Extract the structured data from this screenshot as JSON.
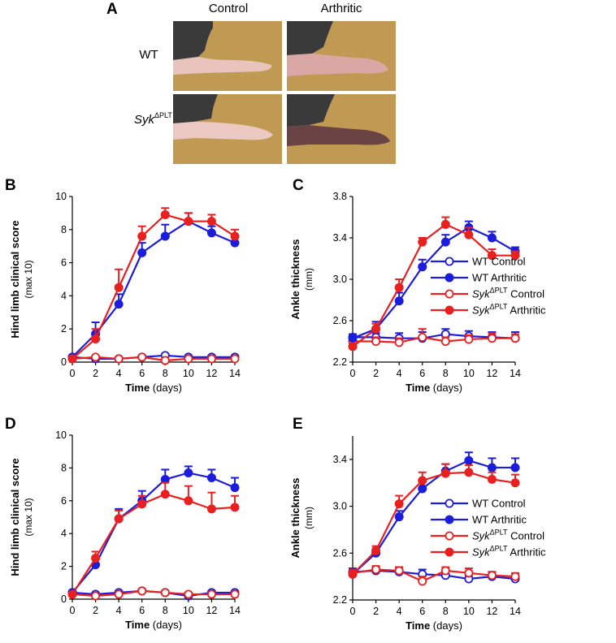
{
  "figure": {
    "panelA": {
      "letter": "A",
      "columns": [
        "Control",
        "Arthritic"
      ],
      "rows": [
        {
          "label": "WT"
        },
        {
          "label_main": "Syk",
          "label_sup": "ΔPLT"
        }
      ]
    },
    "colors": {
      "wt": "#1c1cdc",
      "syk": "#e82020",
      "photo_bg": "#c09a52",
      "paw": "#e8c4bc"
    }
  },
  "chart_data": [
    {
      "id": "B",
      "type": "line",
      "ylabel_bold": "Hind limb clinical score",
      "ylabel_sub": "(max 10)",
      "xlabel_bold": "Time",
      "xlabel_rest": " (days)",
      "x": [
        0,
        2,
        4,
        6,
        8,
        10,
        12,
        14
      ],
      "xlim": [
        0,
        14
      ],
      "ylim": [
        0,
        10
      ],
      "yticks": [
        0,
        2,
        4,
        6,
        8,
        10
      ],
      "ytick_labels": [
        "0",
        "2",
        "4",
        "6",
        "8",
        "10"
      ],
      "series": [
        {
          "name": "WT Control",
          "color": "wt",
          "filled": false,
          "values": [
            0.3,
            0.2,
            0.2,
            0.3,
            0.4,
            0.3,
            0.3,
            0.3
          ],
          "err": [
            0.1,
            0.1,
            0.1,
            0.1,
            0.1,
            0.1,
            0.1,
            0.1
          ]
        },
        {
          "name": "WT Arthritic",
          "color": "wt",
          "filled": true,
          "values": [
            0.3,
            1.7,
            3.5,
            6.6,
            7.6,
            8.5,
            7.8,
            7.2
          ],
          "err": [
            0.1,
            0.7,
            0.6,
            0.6,
            0.7,
            0.5,
            0.4,
            0.3
          ]
        },
        {
          "name": "SykΔPLT Control",
          "color": "syk",
          "filled": false,
          "values": [
            0.2,
            0.3,
            0.2,
            0.3,
            0.1,
            0.2,
            0.2,
            0.2
          ],
          "err": [
            0.1,
            0.1,
            0.1,
            0.1,
            0.2,
            0.1,
            0.1,
            0.1
          ]
        },
        {
          "name": "SykΔPLT Arthritic",
          "color": "syk",
          "filled": true,
          "values": [
            0.2,
            1.4,
            4.5,
            7.6,
            8.9,
            8.5,
            8.5,
            7.6
          ],
          "err": [
            0.1,
            0.6,
            1.1,
            0.6,
            0.4,
            0.5,
            0.4,
            0.4
          ]
        }
      ]
    },
    {
      "id": "C",
      "type": "line",
      "ylabel_bold": "Ankle thickness",
      "ylabel_sub": "(mm)",
      "xlabel_bold": "Time",
      "xlabel_rest": " (days)",
      "x": [
        0,
        2,
        4,
        6,
        8,
        10,
        12,
        14
      ],
      "xlim": [
        0,
        14
      ],
      "ylim": [
        2.2,
        3.8
      ],
      "yticks": [
        2.2,
        2.6,
        3.0,
        3.4,
        3.8
      ],
      "ytick_labels": [
        "2.2",
        "2.6",
        "3.0",
        "3.4",
        "3.8"
      ],
      "legend": [
        {
          "main": "WT",
          "sup": "",
          "rest": " Control",
          "italic": false,
          "series": 0
        },
        {
          "main": "WT",
          "sup": "",
          "rest": " Arthritic",
          "italic": false,
          "series": 1
        },
        {
          "main": "Syk",
          "sup": "ΔPLT",
          "rest": " Control",
          "italic": true,
          "series": 2
        },
        {
          "main": "Syk",
          "sup": "ΔPLT",
          "rest": " Arthritic",
          "italic": true,
          "series": 3
        }
      ],
      "series": [
        {
          "name": "WT Control",
          "color": "wt",
          "filled": false,
          "values": [
            2.44,
            2.44,
            2.43,
            2.43,
            2.47,
            2.45,
            2.44,
            2.43
          ],
          "err": [
            0.03,
            0.04,
            0.05,
            0.06,
            0.05,
            0.05,
            0.05,
            0.06
          ]
        },
        {
          "name": "WT Arthritic",
          "color": "wt",
          "filled": true,
          "values": [
            2.43,
            2.52,
            2.79,
            3.12,
            3.36,
            3.5,
            3.4,
            3.27
          ],
          "err": [
            0.02,
            0.07,
            0.08,
            0.07,
            0.07,
            0.06,
            0.06,
            0.04
          ]
        },
        {
          "name": "SykΔPLT Control",
          "color": "syk",
          "filled": false,
          "values": [
            2.4,
            2.4,
            2.39,
            2.44,
            2.4,
            2.42,
            2.43,
            2.43
          ],
          "err": [
            0.03,
            0.04,
            0.04,
            0.08,
            0.04,
            0.04,
            0.05,
            0.04
          ]
        },
        {
          "name": "SykΔPLT Arthritic",
          "color": "syk",
          "filled": true,
          "values": [
            2.35,
            2.52,
            2.92,
            3.36,
            3.53,
            3.43,
            3.23,
            3.23
          ],
          "err": [
            0.03,
            0.05,
            0.08,
            0.04,
            0.07,
            0.07,
            0.06,
            0.04
          ]
        }
      ]
    },
    {
      "id": "D",
      "type": "line",
      "ylabel_bold": "Hind limb clinical score",
      "ylabel_sub": "(max 10)",
      "xlabel_bold": "Time",
      "xlabel_rest": " (days)",
      "x": [
        0,
        2,
        4,
        6,
        8,
        10,
        12,
        14
      ],
      "xlim": [
        0,
        14
      ],
      "ylim": [
        0,
        10
      ],
      "yticks": [
        0,
        2,
        4,
        6,
        8,
        10
      ],
      "ytick_labels": [
        "0",
        "2",
        "4",
        "6",
        "8",
        "10"
      ],
      "series": [
        {
          "name": "WT Control",
          "color": "wt",
          "filled": false,
          "values": [
            0.4,
            0.3,
            0.4,
            0.5,
            0.4,
            0.2,
            0.4,
            0.4
          ],
          "err": [
            0.1,
            0.1,
            0.1,
            0.1,
            0.1,
            0.2,
            0.1,
            0.1
          ]
        },
        {
          "name": "WT Arthritic",
          "color": "wt",
          "filled": true,
          "values": [
            0.4,
            2.1,
            4.9,
            6.0,
            7.3,
            7.7,
            7.4,
            6.8
          ],
          "err": [
            0.1,
            0.5,
            0.6,
            0.6,
            0.6,
            0.4,
            0.5,
            0.6
          ]
        },
        {
          "name": "SykΔPLT Control",
          "color": "syk",
          "filled": false,
          "values": [
            0.3,
            0.2,
            0.3,
            0.5,
            0.4,
            0.3,
            0.3,
            0.3
          ],
          "err": [
            0.1,
            0.1,
            0.1,
            0.1,
            0.1,
            0.1,
            0.1,
            0.1
          ]
        },
        {
          "name": "SykΔPLT Arthritic",
          "color": "syk",
          "filled": true,
          "values": [
            0.3,
            2.5,
            4.9,
            5.8,
            6.4,
            6.0,
            5.5,
            5.6
          ],
          "err": [
            0.1,
            0.4,
            0.5,
            0.5,
            0.7,
            0.9,
            1.0,
            0.7
          ]
        }
      ]
    },
    {
      "id": "E",
      "type": "line",
      "ylabel_bold": "Ankle thickness",
      "ylabel_sub": "(mm)",
      "xlabel_bold": "Time",
      "xlabel_rest": " (days)",
      "x": [
        0,
        2,
        4,
        6,
        8,
        10,
        12,
        14
      ],
      "xlim": [
        0,
        14
      ],
      "ylim": [
        2.2,
        3.6
      ],
      "yticks": [
        2.2,
        2.6,
        3.0,
        3.4
      ],
      "ytick_labels": [
        "2.2",
        "2.6",
        "3.0",
        "3.4"
      ],
      "legend": [
        {
          "main": "WT",
          "sup": "",
          "rest": " Control",
          "italic": false,
          "series": 0
        },
        {
          "main": "WT",
          "sup": "",
          "rest": " Arthritic",
          "italic": false,
          "series": 1
        },
        {
          "main": "Syk",
          "sup": "ΔPLT",
          "rest": " Control",
          "italic": true,
          "series": 2
        },
        {
          "main": "Syk",
          "sup": "ΔPLT",
          "rest": " Arthritic",
          "italic": true,
          "series": 3
        }
      ],
      "series": [
        {
          "name": "WT Control",
          "color": "wt",
          "filled": false,
          "values": [
            2.44,
            2.45,
            2.44,
            2.42,
            2.41,
            2.38,
            2.4,
            2.38
          ],
          "err": [
            0.03,
            0.03,
            0.04,
            0.04,
            0.04,
            0.03,
            0.04,
            0.03
          ]
        },
        {
          "name": "WT Arthritic",
          "color": "wt",
          "filled": true,
          "values": [
            2.42,
            2.6,
            2.91,
            3.15,
            3.3,
            3.39,
            3.33,
            3.33
          ],
          "err": [
            0.02,
            0.04,
            0.05,
            0.06,
            0.06,
            0.07,
            0.08,
            0.08
          ]
        },
        {
          "name": "SykΔPLT Control",
          "color": "syk",
          "filled": false,
          "values": [
            2.43,
            2.46,
            2.45,
            2.36,
            2.45,
            2.43,
            2.41,
            2.4
          ],
          "err": [
            0.03,
            0.03,
            0.03,
            0.04,
            0.03,
            0.04,
            0.03,
            0.03
          ]
        },
        {
          "name": "SykΔPLT Arthritic",
          "color": "syk",
          "filled": true,
          "values": [
            2.42,
            2.62,
            3.02,
            3.22,
            3.28,
            3.29,
            3.23,
            3.2
          ],
          "err": [
            0.02,
            0.04,
            0.07,
            0.07,
            0.08,
            0.06,
            0.06,
            0.07
          ]
        }
      ]
    }
  ]
}
